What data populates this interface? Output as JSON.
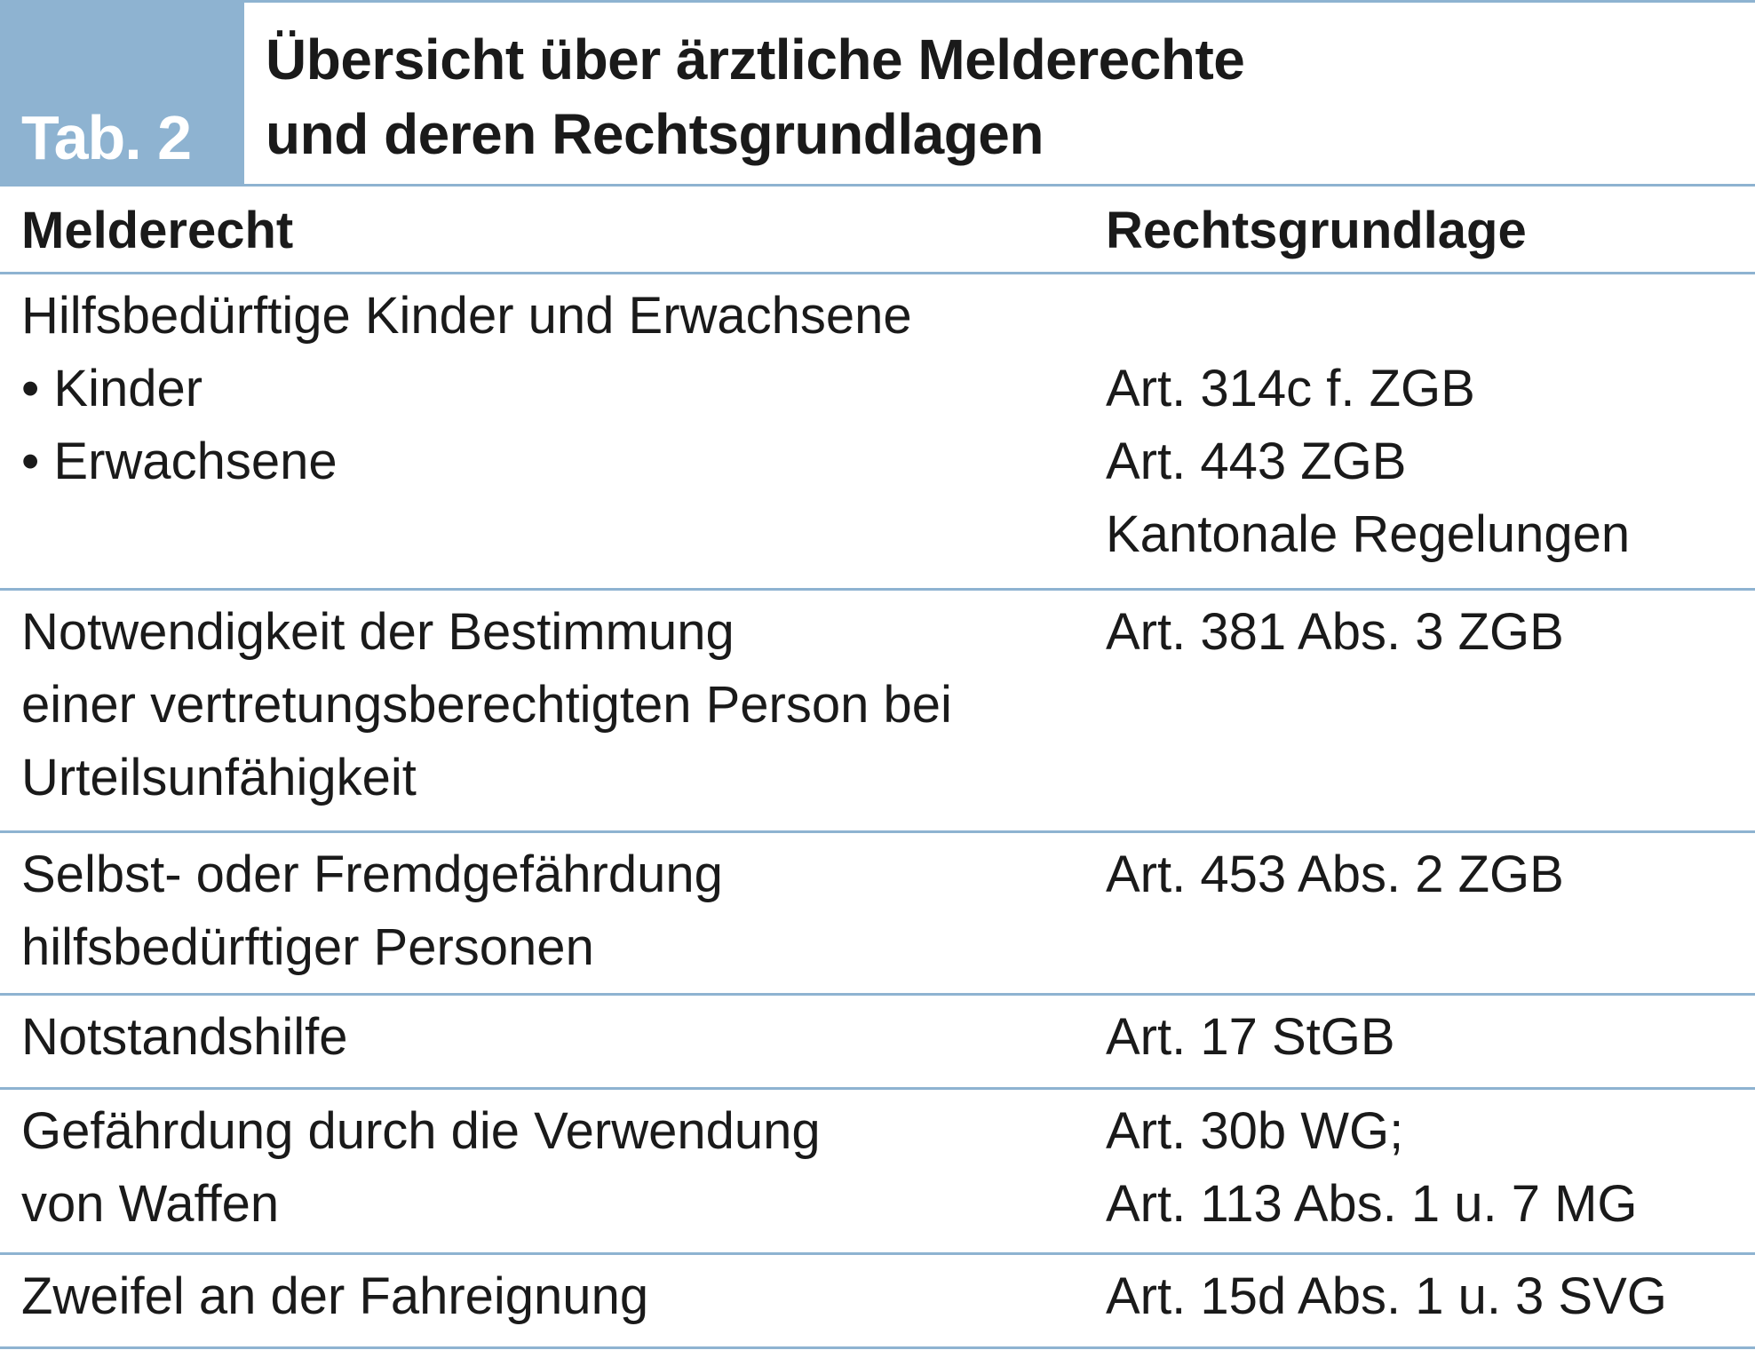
{
  "tab_label": "Tab. 2",
  "title": {
    "line1": "Übersicht über ärztliche Melderechte",
    "line2": "und deren Rechtsgrundlagen"
  },
  "columns": {
    "left": "Melderecht",
    "right": "Rechtsgrundlage"
  },
  "rows": [
    {
      "left": [
        "Hilfsbedürftige Kinder und Erwachsene",
        "Kinder",
        "Erwachsene"
      ],
      "right": [
        "Art. 314c f. ZGB",
        "Art. 443 ZGB",
        "Kantonale Regelungen"
      ]
    },
    {
      "left": [
        "Notwendigkeit der Bestimmung",
        "einer vertretungsberechtigten Person bei",
        "Urteilsunfähigkeit"
      ],
      "right": [
        "Art. 381 Abs. 3 ZGB"
      ]
    },
    {
      "left": [
        "Selbst- oder Fremdgefährdung",
        "hilfsbedürftiger Personen"
      ],
      "right": [
        "Art. 453 Abs. 2 ZGB"
      ]
    },
    {
      "left": [
        "Notstandshilfe"
      ],
      "right": [
        "Art. 17 StGB"
      ]
    },
    {
      "left": [
        "Gefährdung durch die Verwendung",
        "von Waffen"
      ],
      "right": [
        "Art. 30b WG;",
        "Art. 113 Abs. 1 u. 7 MG"
      ]
    },
    {
      "left": [
        "Zweifel an der Fahreignung"
      ],
      "right": [
        "Art. 15d Abs. 1 u. 3 SVG"
      ]
    }
  ],
  "colors": {
    "accent": "#8eb3d1",
    "text": "#1a1a1a"
  }
}
